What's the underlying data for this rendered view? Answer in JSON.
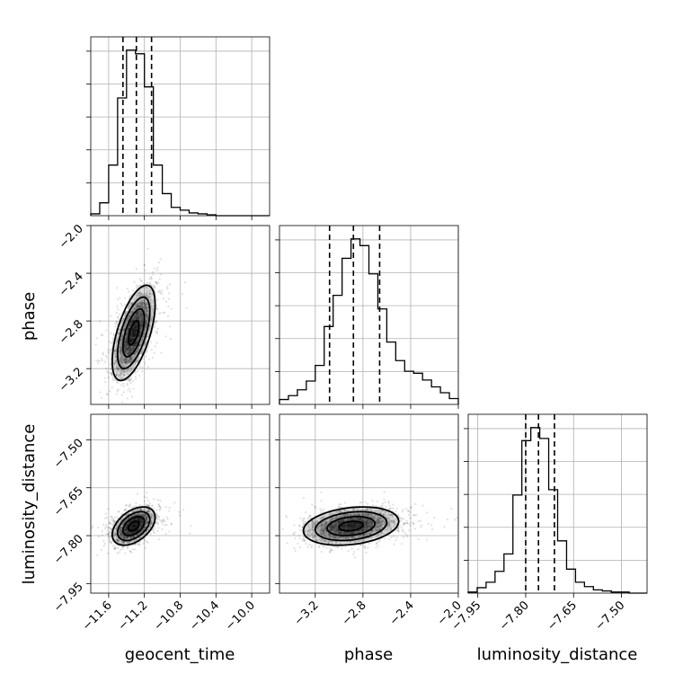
{
  "chart_data": {
    "type": "corner",
    "parameters": [
      "geocent_time",
      "phase",
      "luminosity_distance"
    ],
    "grid": true,
    "ranges": {
      "geocent_time": [
        -11.8,
        -9.8
      ],
      "phase": [
        -3.5,
        -2.0
      ],
      "luminosity_distance": [
        -7.98,
        -7.42
      ]
    },
    "ticks": {
      "geocent_time": [
        "-11.6",
        "-11.2",
        "-10.8",
        "-10.4",
        "-10.0"
      ],
      "phase": [
        "-3.2",
        "-2.8",
        "-2.4",
        "-2.0"
      ],
      "luminosity_distance": [
        "-7.95",
        "-7.80",
        "-7.65",
        "-7.50"
      ]
    },
    "tick_values": {
      "geocent_time": [
        -11.6,
        -11.2,
        -10.8,
        -10.4,
        -10.0
      ],
      "phase": [
        -3.2,
        -2.8,
        -2.4,
        -2.0
      ],
      "luminosity_distance": [
        -7.95,
        -7.8,
        -7.65,
        -7.5
      ]
    },
    "quantiles": {
      "geocent_time": [
        -11.44,
        -11.29,
        -11.12
      ],
      "phase": [
        -3.08,
        -2.88,
        -2.66
      ],
      "luminosity_distance": [
        -7.8,
        -7.76,
        -7.71
      ]
    },
    "histograms": {
      "geocent_time": {
        "edges": [
          -11.8,
          -11.7,
          -11.6,
          -11.5,
          -11.4,
          -11.3,
          -11.2,
          -11.1,
          -11.0,
          -10.9,
          -10.8,
          -10.7,
          -10.6,
          -10.5,
          -10.4,
          -10.3,
          -10.2,
          -10.1,
          -10.0,
          -9.9,
          -9.8
        ],
        "counts": [
          2,
          14,
          55,
          128,
          180,
          176,
          140,
          55,
          24,
          9,
          6,
          3,
          2,
          1,
          0,
          0,
          0,
          0,
          0,
          0
        ]
      },
      "phase": {
        "edges": [
          -3.5,
          -3.425,
          -3.35,
          -3.275,
          -3.2,
          -3.125,
          -3.05,
          -2.975,
          -2.9,
          -2.825,
          -2.75,
          -2.675,
          -2.6,
          -2.525,
          -2.45,
          -2.375,
          -2.3,
          -2.225,
          -2.15,
          -2.075,
          -2.0
        ],
        "counts": [
          5,
          9,
          15,
          24,
          40,
          80,
          112,
          150,
          170,
          163,
          134,
          98,
          64,
          45,
          34,
          32,
          25,
          18,
          12,
          6
        ]
      },
      "luminosity_distance": {
        "edges": [
          -7.98,
          -7.952,
          -7.924,
          -7.896,
          -7.868,
          -7.84,
          -7.812,
          -7.784,
          -7.756,
          -7.728,
          -7.7,
          -7.672,
          -7.644,
          -7.616,
          -7.588,
          -7.56,
          -7.532,
          -7.504,
          -7.476,
          -7.448,
          -7.42
        ],
        "counts": [
          1,
          5,
          10,
          20,
          36,
          90,
          140,
          152,
          142,
          95,
          48,
          22,
          10,
          6,
          3,
          2,
          1,
          1,
          0,
          0
        ]
      }
    },
    "correlations": {
      "phase|geocent_time": 0.6,
      "luminosity_distance|geocent_time": 0.45,
      "luminosity_distance|phase": 0.25
    },
    "centers": {
      "geocent_time": -11.32,
      "phase": -2.9,
      "luminosity_distance": -7.77
    },
    "spreads": {
      "geocent_time": 0.12,
      "phase": 0.2,
      "luminosity_distance": 0.03
    }
  }
}
